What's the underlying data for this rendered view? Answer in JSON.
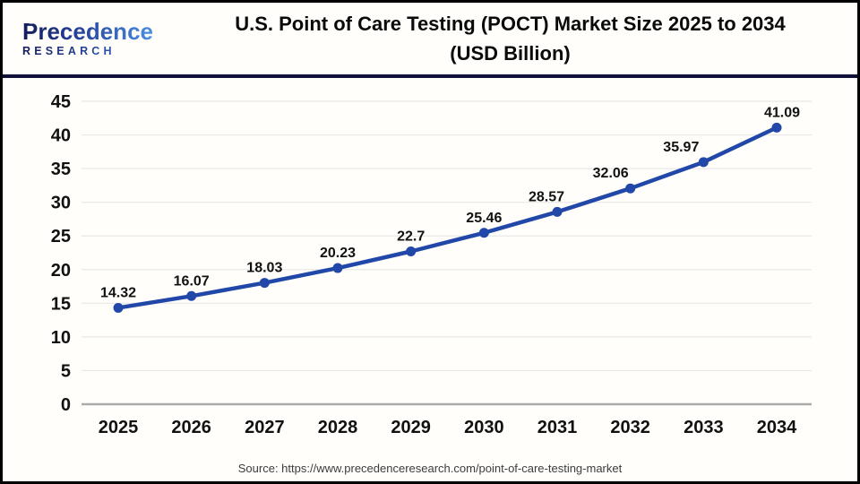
{
  "header": {
    "logo": {
      "name": "Precedence",
      "subname": "RESEARCH"
    },
    "title_line1": "U.S. Point of Care Testing (POCT) Market Size 2025 to 2034",
    "title_line2": "(USD Billion)"
  },
  "chart_data": {
    "type": "line",
    "title": "U.S. Point of Care Testing (POCT) Market Size 2025 to 2034 (USD Billion)",
    "categories": [
      "2025",
      "2026",
      "2027",
      "2028",
      "2029",
      "2030",
      "2031",
      "2032",
      "2033",
      "2034"
    ],
    "series": [
      {
        "name": "U.S. POCT market size (USD Billion)",
        "values": [
          14.32,
          16.07,
          18.03,
          20.23,
          22.7,
          25.46,
          28.57,
          32.06,
          35.97,
          41.09
        ]
      }
    ],
    "xlabel": "",
    "ylabel": "",
    "ylim": [
      0,
      45
    ],
    "yticks": [
      0,
      5,
      10,
      15,
      20,
      25,
      30,
      35,
      40,
      45
    ],
    "grid": true,
    "legend": "none",
    "data_labels": true,
    "line_color": "#2148A8",
    "grid_color": "#E8E8E8",
    "axis_color": "#ABABAB",
    "tick_color": "#111111",
    "label_color": "#111111"
  },
  "footer": {
    "source": "Source: https://www.precedenceresearch.com/point-of-care-testing-market"
  }
}
